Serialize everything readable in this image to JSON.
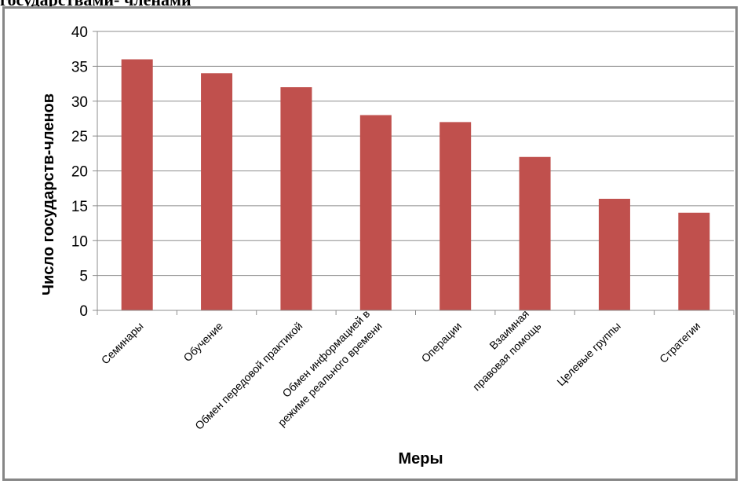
{
  "caption": "государствами- членами",
  "chart_data": {
    "type": "bar",
    "categories": [
      [
        "Семинары"
      ],
      [
        "Обучение"
      ],
      [
        "Обмен передовой практикой"
      ],
      [
        "Обмен информацией в",
        "режиме реального времени"
      ],
      [
        "Операции"
      ],
      [
        "Взаимная",
        "правовая помощь"
      ],
      [
        "Целевые группы"
      ],
      [
        "Стратегии"
      ]
    ],
    "values": [
      36,
      34,
      32,
      28,
      27,
      22,
      16,
      14
    ],
    "xlabel": "Меры",
    "ylabel": "Число государств-членов",
    "ylim": [
      0,
      40
    ],
    "yticks": [
      0,
      5,
      10,
      15,
      20,
      25,
      30,
      35,
      40
    ],
    "grid": true,
    "bar_color": "#c0504d",
    "grid_color": "#8c8c8c"
  }
}
